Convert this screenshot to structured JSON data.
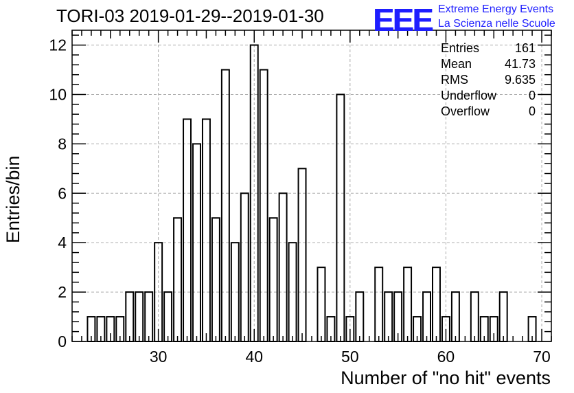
{
  "chart_data": {
    "type": "bar",
    "title": "TORI-03 2019-01-29--2019-01-30",
    "xlabel": "Number of \"no hit\" events",
    "ylabel": "Entries/bin",
    "xlim": [
      21,
      71
    ],
    "ylim": [
      0,
      12.6
    ],
    "x_ticks": [
      30,
      40,
      50,
      60,
      70
    ],
    "y_ticks": [
      0,
      2,
      4,
      6,
      8,
      10,
      12
    ],
    "grid": true,
    "bin_width": 1,
    "bins": [
      {
        "x": 23,
        "y": 1
      },
      {
        "x": 24,
        "y": 1
      },
      {
        "x": 25,
        "y": 1
      },
      {
        "x": 26,
        "y": 1
      },
      {
        "x": 27,
        "y": 2
      },
      {
        "x": 28,
        "y": 2
      },
      {
        "x": 29,
        "y": 2
      },
      {
        "x": 30,
        "y": 4
      },
      {
        "x": 31,
        "y": 2
      },
      {
        "x": 32,
        "y": 5
      },
      {
        "x": 33,
        "y": 9
      },
      {
        "x": 34,
        "y": 8
      },
      {
        "x": 35,
        "y": 9
      },
      {
        "x": 36,
        "y": 5
      },
      {
        "x": 37,
        "y": 11
      },
      {
        "x": 38,
        "y": 4
      },
      {
        "x": 39,
        "y": 6
      },
      {
        "x": 40,
        "y": 12
      },
      {
        "x": 41,
        "y": 11
      },
      {
        "x": 42,
        "y": 5
      },
      {
        "x": 43,
        "y": 6
      },
      {
        "x": 44,
        "y": 4
      },
      {
        "x": 45,
        "y": 7
      },
      {
        "x": 46,
        "y": 0
      },
      {
        "x": 47,
        "y": 3
      },
      {
        "x": 48,
        "y": 1
      },
      {
        "x": 49,
        "y": 10
      },
      {
        "x": 50,
        "y": 1
      },
      {
        "x": 51,
        "y": 2
      },
      {
        "x": 52,
        "y": 0
      },
      {
        "x": 53,
        "y": 3
      },
      {
        "x": 54,
        "y": 2
      },
      {
        "x": 55,
        "y": 2
      },
      {
        "x": 56,
        "y": 3
      },
      {
        "x": 57,
        "y": 1
      },
      {
        "x": 58,
        "y": 2
      },
      {
        "x": 59,
        "y": 3
      },
      {
        "x": 60,
        "y": 1
      },
      {
        "x": 61,
        "y": 2
      },
      {
        "x": 62,
        "y": 0
      },
      {
        "x": 63,
        "y": 2
      },
      {
        "x": 64,
        "y": 1
      },
      {
        "x": 65,
        "y": 1
      },
      {
        "x": 66,
        "y": 2
      },
      {
        "x": 67,
        "y": 0
      },
      {
        "x": 68,
        "y": 0
      },
      {
        "x": 69,
        "y": 1
      }
    ],
    "stats": {
      "entries_label": "Entries",
      "entries": "161",
      "mean_label": "Mean",
      "mean": "41.73",
      "rms_label": "RMS",
      "rms": "9.635",
      "underflow_label": "Underflow",
      "underflow": "0",
      "overflow_label": "Overflow",
      "overflow": "0"
    }
  },
  "logo": {
    "mark": "EEE",
    "line1": "Extreme Energy Events",
    "line2": "La Scienza nelle Scuole",
    "color": "#1e1eff"
  }
}
